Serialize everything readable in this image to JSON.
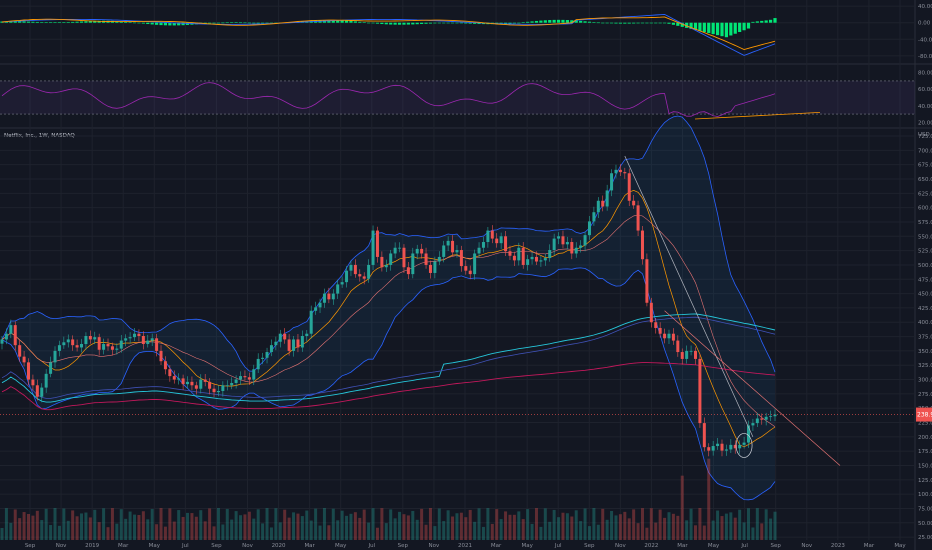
{
  "symbol_title": "Netflix, Inc., 1W, NASDAQ",
  "currency": "USD",
  "colors": {
    "background": "#131722",
    "up": "#26a69a",
    "down": "#ef5350",
    "macd_hist": "#00e676",
    "rsi": "#9c27b0",
    "band": "#2962ff",
    "ema_orange": "#ff9800",
    "ma_teal": "#26c6da",
    "ma_red": "#c2185b"
  },
  "chart_data": [
    {
      "type": "line",
      "pane": "macd",
      "y_ticks": [
        "40.00",
        "0.00",
        "-40.00",
        "-80.00"
      ],
      "ylim": [
        -90,
        50
      ]
    },
    {
      "type": "line",
      "pane": "rsi",
      "y_ticks": [
        "80.00",
        "60.00",
        "40.00",
        "20.00"
      ],
      "ylim": [
        18,
        88
      ],
      "bands": [
        70,
        30
      ]
    },
    {
      "type": "candlestick",
      "pane": "price",
      "title": "Netflix, Inc., 1W, NASDAQ",
      "y_ticks": [
        "725.00",
        "700.00",
        "675.00",
        "650.00",
        "625.00",
        "600.00",
        "575.00",
        "550.00",
        "525.00",
        "500.00",
        "475.00",
        "450.00",
        "425.00",
        "400.00",
        "375.00",
        "350.00",
        "325.00",
        "300.00",
        "275.00",
        "250.00",
        "225.00",
        "200.00",
        "175.00",
        "150.00",
        "125.00",
        "100.00",
        "75.00",
        "50.00",
        "25.00"
      ],
      "ylim": [
        20,
        732
      ],
      "x_ticks": [
        "Sep",
        "Nov",
        "2019",
        "Mar",
        "May",
        "Jul",
        "Sep",
        "Nov",
        "2020",
        "Mar",
        "May",
        "Jul",
        "Sep",
        "Nov",
        "2021",
        "Mar",
        "May",
        "Jul",
        "Sep",
        "Nov",
        "2022",
        "Mar",
        "May",
        "Jul",
        "Sep",
        "Nov",
        "2023",
        "Mar",
        "May"
      ],
      "last_price": "238.90",
      "close": [
        370,
        380,
        395,
        360,
        340,
        330,
        300,
        290,
        270,
        286,
        310,
        330,
        350,
        360,
        365,
        370,
        360,
        356,
        362,
        376,
        370,
        374,
        352,
        362,
        358,
        352,
        354,
        368,
        372,
        374,
        380,
        376,
        362,
        368,
        372,
        350,
        332,
        318,
        306,
        300,
        302,
        292,
        296,
        290,
        284,
        300,
        296,
        284,
        278,
        280,
        290,
        290,
        294,
        300,
        306,
        304,
        300,
        318,
        336,
        338,
        348,
        360,
        366,
        380,
        370,
        350,
        370,
        356,
        376,
        380,
        420,
        426,
        434,
        450,
        440,
        450,
        466,
        470,
        490,
        500,
        484,
        480,
        476,
        500,
        560,
        514,
        496,
        500,
        520,
        530,
        530,
        496,
        484,
        520,
        528,
        520,
        500,
        486,
        506,
        514,
        534,
        542,
        522,
        526,
        498,
        490,
        484,
        520,
        530,
        540,
        560,
        546,
        538,
        550,
        524,
        516,
        508,
        530,
        500,
        510,
        514,
        506,
        508,
        512,
        526,
        546,
        550,
        536,
        540,
        520,
        530,
        534,
        552,
        576,
        592,
        612,
        602,
        630,
        660,
        666,
        662,
        660,
        612,
        604,
        560,
        510,
        434,
        400,
        390,
        380,
        372,
        380,
        368,
        348,
        336,
        350,
        350,
        336,
        224,
        182,
        176,
        184,
        188,
        176,
        178,
        186,
        180,
        186,
        190,
        220,
        224,
        232,
        230,
        235,
        236,
        238.9
      ],
      "volume_note": "Weekly volume histogram at bottom",
      "indicators": [
        "Bollinger Bands (20)",
        "EMA 10",
        "EMA 20",
        "MA 100",
        "MA 200"
      ]
    }
  ]
}
